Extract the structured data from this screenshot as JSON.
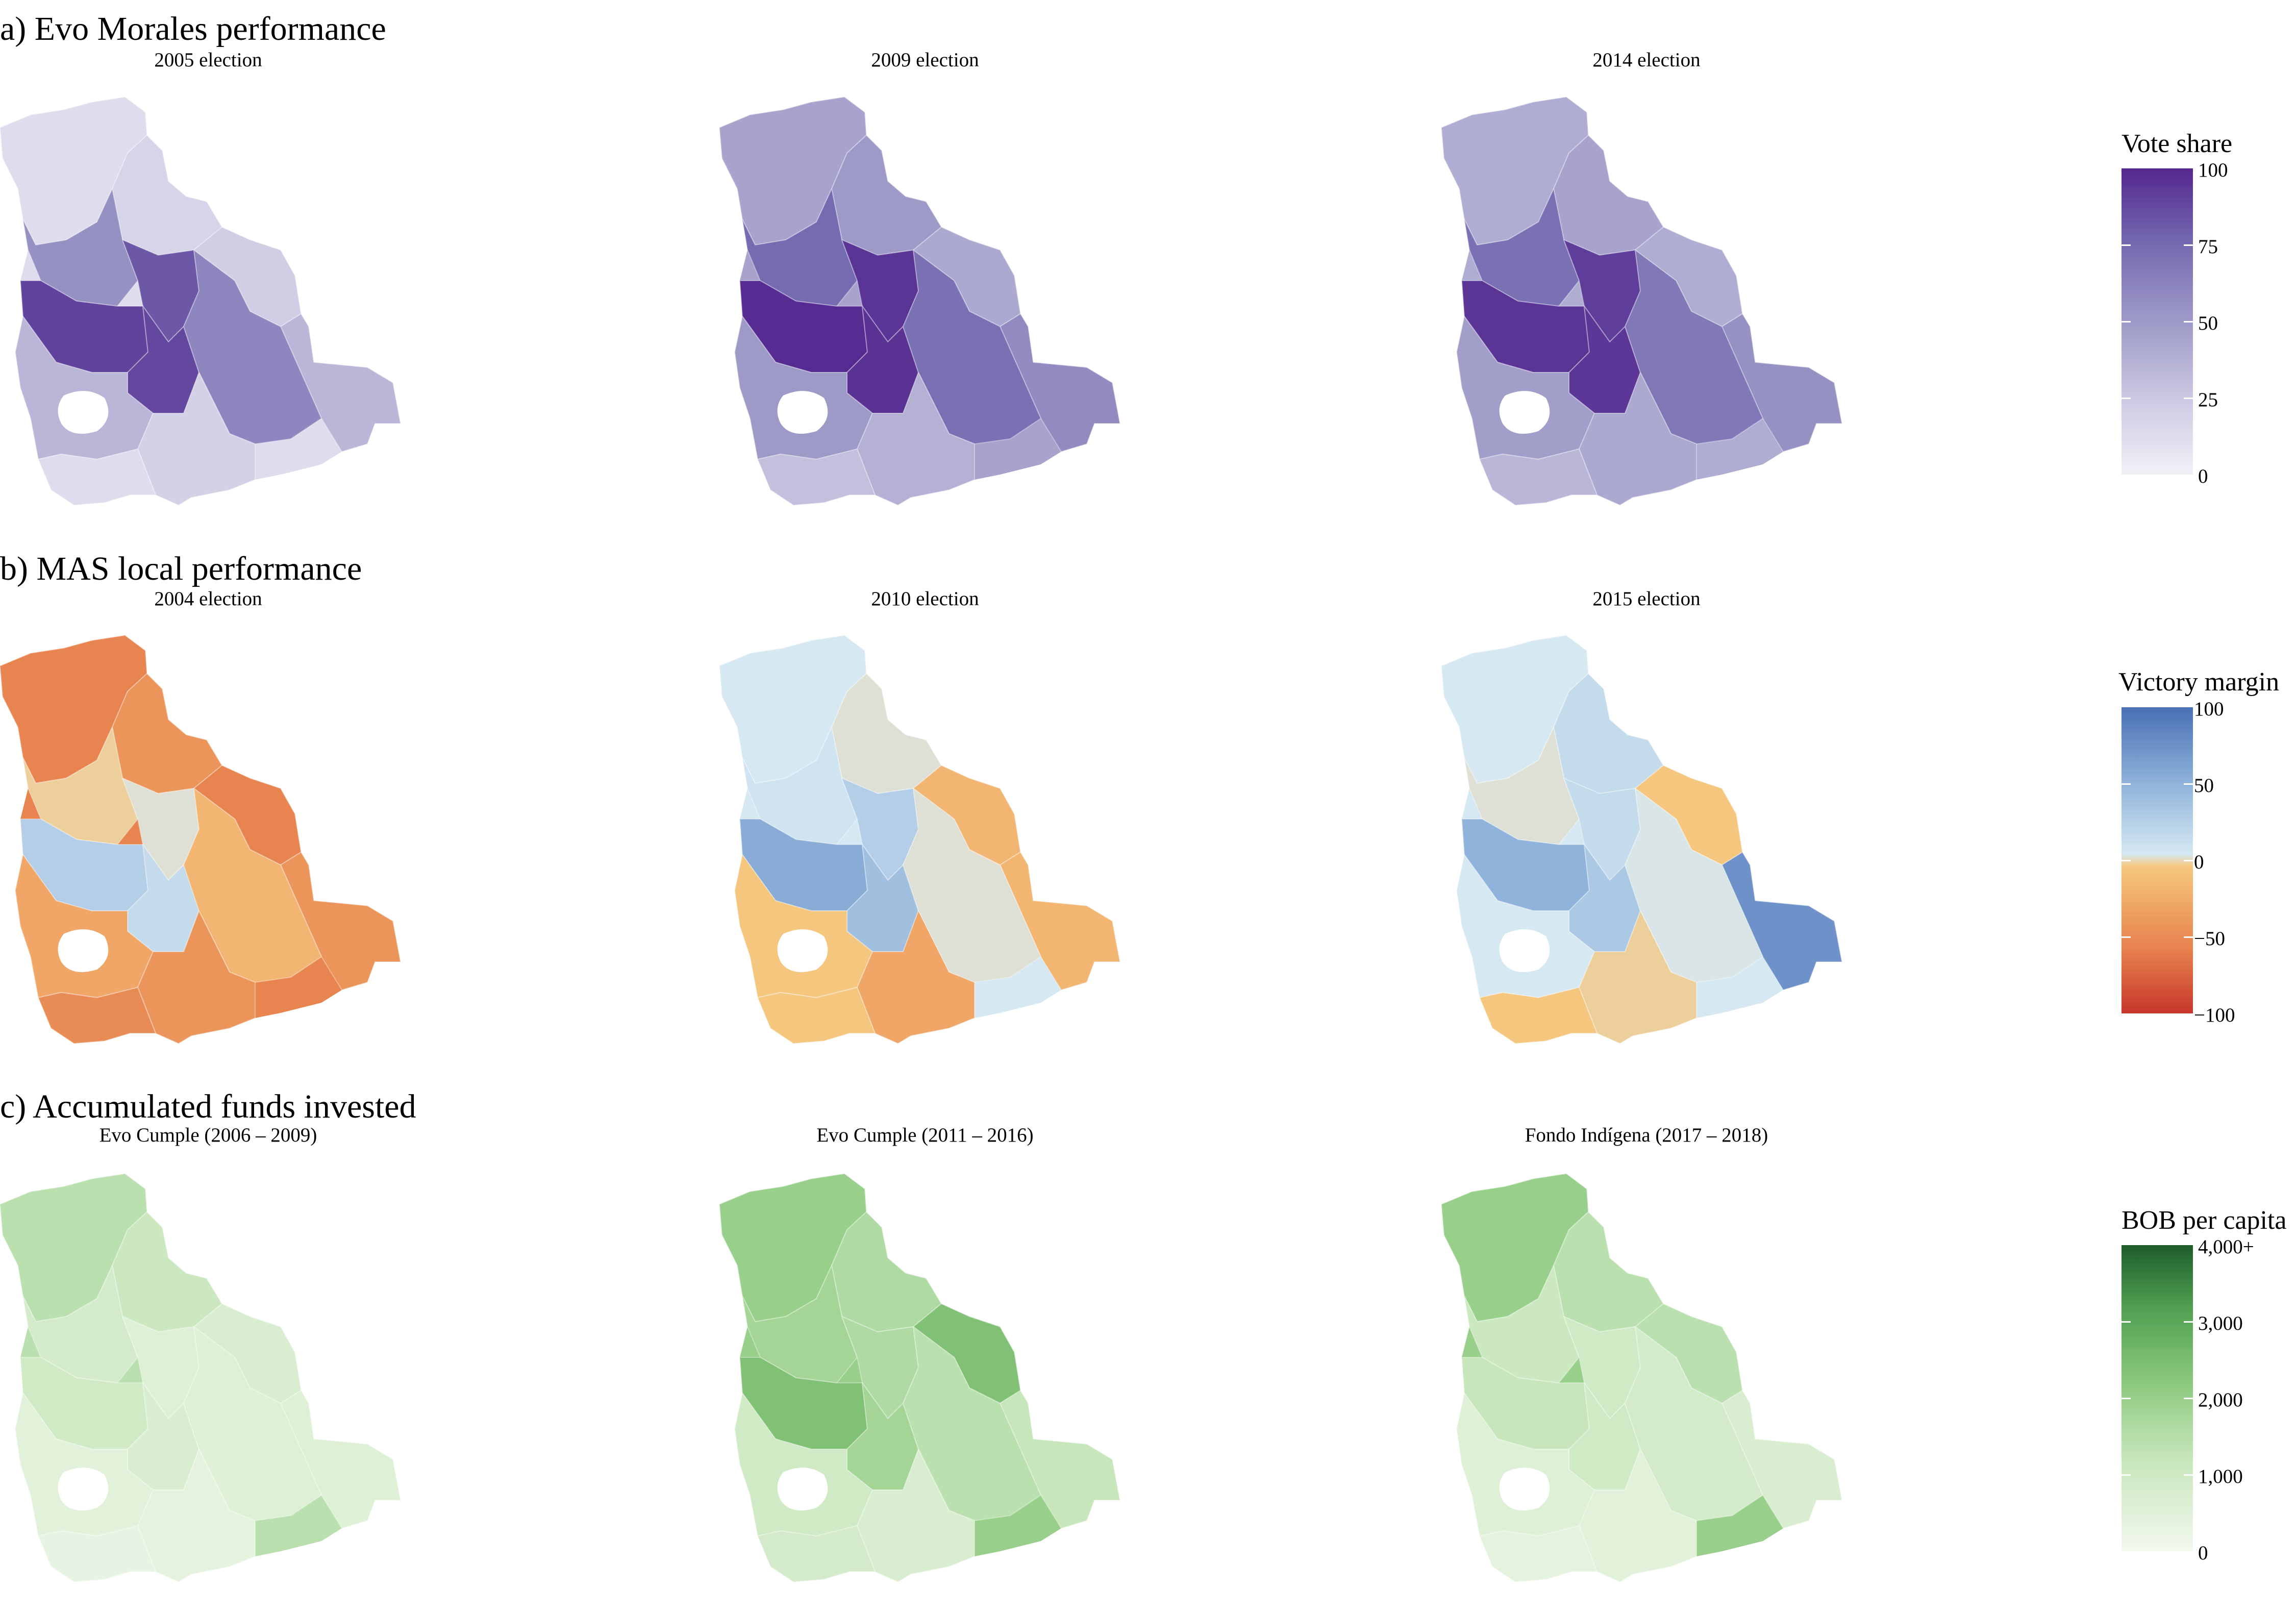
{
  "sections": [
    {
      "title": "a) Evo Morales performance",
      "scale": "purple",
      "maps": [
        {
          "title": "2005 election",
          "levels": [
            0.12,
            0.18,
            0.22,
            0.35,
            0.55,
            0.82,
            0.9,
            0.88,
            0.6,
            0.35,
            0.2,
            0.12
          ]
        },
        {
          "title": "2009 election",
          "levels": [
            0.45,
            0.5,
            0.42,
            0.58,
            0.75,
            0.95,
            0.98,
            0.96,
            0.72,
            0.5,
            0.38,
            0.3
          ]
        },
        {
          "title": "2014 election",
          "levels": [
            0.4,
            0.45,
            0.4,
            0.55,
            0.72,
            0.92,
            0.95,
            0.94,
            0.68,
            0.48,
            0.42,
            0.35
          ]
        }
      ],
      "legend": {
        "title": "Vote share",
        "ticks": [
          "100",
          "75",
          "50",
          "25",
          "0"
        ]
      }
    },
    {
      "title": "b) MAS local performance",
      "scale": "diverging",
      "maps": [
        {
          "title": "2004 election",
          "levels": [
            0.2,
            0.25,
            0.2,
            0.25,
            0.45,
            0.55,
            0.7,
            0.65,
            0.35,
            0.3,
            0.25,
            0.22
          ]
        },
        {
          "title": "2010 election",
          "levels": [
            0.6,
            0.55,
            0.35,
            0.35,
            0.62,
            0.7,
            0.82,
            0.75,
            0.55,
            0.4,
            0.3,
            0.4
          ]
        },
        {
          "title": "2015 election",
          "levels": [
            0.6,
            0.65,
            0.4,
            0.9,
            0.55,
            0.65,
            0.8,
            0.72,
            0.58,
            0.6,
            0.45,
            0.4
          ]
        }
      ],
      "legend": {
        "title": "Victory margin",
        "ticks": [
          "100",
          "50",
          "0",
          "−50",
          "−100"
        ]
      }
    },
    {
      "title": "c) Accumulated funds invested",
      "scale": "green",
      "maps": [
        {
          "title": "Evo Cumple (2006 – 2009)",
          "levels": [
            0.3,
            0.22,
            0.15,
            0.12,
            0.18,
            0.12,
            0.2,
            0.15,
            0.12,
            0.1,
            0.08,
            0.06
          ]
        },
        {
          "title": "Evo Cumple (2011 – 2016)",
          "levels": [
            0.45,
            0.35,
            0.55,
            0.25,
            0.4,
            0.35,
            0.55,
            0.4,
            0.3,
            0.2,
            0.15,
            0.18
          ]
        },
        {
          "title": "Fondo Indígena (2017 – 2018)",
          "levels": [
            0.45,
            0.3,
            0.3,
            0.15,
            0.22,
            0.2,
            0.25,
            0.2,
            0.18,
            0.12,
            0.1,
            0.08
          ]
        }
      ],
      "legend": {
        "title": "BOB per capita",
        "ticks": [
          "4,000+",
          "3,000",
          "2,000",
          "1,000",
          "0"
        ]
      }
    }
  ],
  "colors": {
    "purple": [
      "#f2f0f7",
      "#cbc9e2",
      "#9e9ac8",
      "#756bb1",
      "#54278f"
    ],
    "diverging": [
      "#c7372b",
      "#e8844f",
      "#f5c77e",
      "#d6e8f2",
      "#8fb3da",
      "#4a6fb5"
    ],
    "green": [
      "#f3f9ef",
      "#c7e6bb",
      "#8cc97e",
      "#4f9f50",
      "#1e5c2c"
    ]
  }
}
